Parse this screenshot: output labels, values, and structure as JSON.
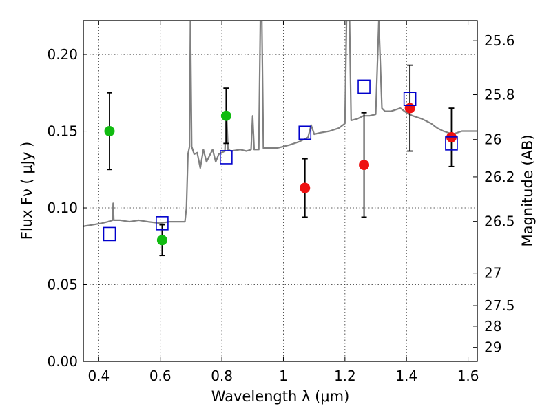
{
  "chart_data": {
    "type": "scatter",
    "title": "",
    "xlabel": "Wavelength  λ (μm)",
    "ylabel": "Flux  Fν  ( μJy )",
    "y2label": "Magnitude (AB)",
    "xlim": [
      0.35,
      1.63
    ],
    "ylim": [
      0.0,
      0.222
    ],
    "grid": true,
    "x_ticks": [
      0.4,
      0.6,
      0.8,
      1.0,
      1.2,
      1.4,
      1.6
    ],
    "x_tick_labels": [
      "0.4",
      "0.6",
      "0.8",
      "1",
      "1.2",
      "1.4",
      "1.6"
    ],
    "y_ticks": [
      0.0,
      0.05,
      0.1,
      0.15,
      0.2
    ],
    "y_tick_labels": [
      "0.00",
      "0.05",
      "0.10",
      "0.15",
      "0.20"
    ],
    "y2_ticks": [
      {
        "mag": 25.6,
        "label": "25.6"
      },
      {
        "mag": 25.8,
        "label": "25.8"
      },
      {
        "mag": 26.0,
        "label": "26"
      },
      {
        "mag": 26.2,
        "label": "26.2"
      },
      {
        "mag": 26.5,
        "label": "26.5"
      },
      {
        "mag": 27.0,
        "label": "27"
      },
      {
        "mag": 27.5,
        "label": "27.5"
      },
      {
        "mag": 28.0,
        "label": "28"
      },
      {
        "mag": 29.0,
        "label": "29"
      }
    ],
    "colors": {
      "spectrum": "#808080",
      "green": "#11bb11",
      "red": "#ee1111",
      "model": "#0000cc",
      "errorbar": "#000000"
    },
    "series": [
      {
        "kind": "points-green",
        "points": [
          {
            "x": 0.435,
            "y": 0.15,
            "err": 0.025
          },
          {
            "x": 0.606,
            "y": 0.079,
            "err": 0.01
          },
          {
            "x": 0.814,
            "y": 0.16,
            "err": 0.018
          }
        ]
      },
      {
        "kind": "points-red",
        "points": [
          {
            "x": 1.07,
            "y": 0.113,
            "err": 0.019
          },
          {
            "x": 1.262,
            "y": 0.128,
            "err": 0.034
          },
          {
            "x": 1.411,
            "y": 0.165,
            "err": 0.028
          },
          {
            "x": 1.546,
            "y": 0.146,
            "err": 0.019
          }
        ]
      },
      {
        "kind": "model-squares",
        "points": [
          {
            "x": 0.435,
            "y": 0.083
          },
          {
            "x": 0.606,
            "y": 0.09
          },
          {
            "x": 0.814,
            "y": 0.133
          },
          {
            "x": 1.07,
            "y": 0.149
          },
          {
            "x": 1.262,
            "y": 0.179
          },
          {
            "x": 1.411,
            "y": 0.171
          },
          {
            "x": 1.546,
            "y": 0.142
          }
        ]
      },
      {
        "kind": "spectrum",
        "points": [
          [
            0.35,
            0.088
          ],
          [
            0.38,
            0.089
          ],
          [
            0.41,
            0.09
          ],
          [
            0.43,
            0.091
          ],
          [
            0.445,
            0.092
          ],
          [
            0.447,
            0.103
          ],
          [
            0.449,
            0.092
          ],
          [
            0.47,
            0.092
          ],
          [
            0.5,
            0.091
          ],
          [
            0.53,
            0.092
          ],
          [
            0.56,
            0.091
          ],
          [
            0.6,
            0.09
          ],
          [
            0.63,
            0.091
          ],
          [
            0.66,
            0.091
          ],
          [
            0.68,
            0.091
          ],
          [
            0.685,
            0.1
          ],
          [
            0.69,
            0.135
          ],
          [
            0.695,
            0.14
          ],
          [
            0.698,
            0.222
          ],
          [
            0.702,
            0.14
          ],
          [
            0.71,
            0.135
          ],
          [
            0.72,
            0.136
          ],
          [
            0.73,
            0.126
          ],
          [
            0.74,
            0.138
          ],
          [
            0.75,
            0.13
          ],
          [
            0.76,
            0.134
          ],
          [
            0.77,
            0.138
          ],
          [
            0.78,
            0.13
          ],
          [
            0.79,
            0.135
          ],
          [
            0.8,
            0.136
          ],
          [
            0.81,
            0.137
          ],
          [
            0.815,
            0.163
          ],
          [
            0.82,
            0.138
          ],
          [
            0.83,
            0.137
          ],
          [
            0.86,
            0.138
          ],
          [
            0.88,
            0.137
          ],
          [
            0.895,
            0.138
          ],
          [
            0.9,
            0.16
          ],
          [
            0.905,
            0.138
          ],
          [
            0.92,
            0.138
          ],
          [
            0.925,
            0.222
          ],
          [
            0.93,
            0.222
          ],
          [
            0.935,
            0.139
          ],
          [
            0.95,
            0.139
          ],
          [
            0.98,
            0.139
          ],
          [
            1.0,
            0.14
          ],
          [
            1.02,
            0.141
          ],
          [
            1.05,
            0.143
          ],
          [
            1.08,
            0.146
          ],
          [
            1.09,
            0.154
          ],
          [
            1.1,
            0.148
          ],
          [
            1.12,
            0.149
          ],
          [
            1.15,
            0.15
          ],
          [
            1.18,
            0.152
          ],
          [
            1.2,
            0.155
          ],
          [
            1.205,
            0.222
          ],
          [
            1.215,
            0.222
          ],
          [
            1.22,
            0.157
          ],
          [
            1.24,
            0.158
          ],
          [
            1.26,
            0.16
          ],
          [
            1.28,
            0.16
          ],
          [
            1.3,
            0.161
          ],
          [
            1.31,
            0.222
          ],
          [
            1.32,
            0.165
          ],
          [
            1.33,
            0.163
          ],
          [
            1.35,
            0.163
          ],
          [
            1.38,
            0.165
          ],
          [
            1.4,
            0.162
          ],
          [
            1.42,
            0.16
          ],
          [
            1.45,
            0.158
          ],
          [
            1.48,
            0.155
          ],
          [
            1.5,
            0.152
          ],
          [
            1.52,
            0.15
          ],
          [
            1.55,
            0.148
          ],
          [
            1.58,
            0.15
          ],
          [
            1.6,
            0.15
          ],
          [
            1.63,
            0.15
          ]
        ]
      }
    ]
  }
}
